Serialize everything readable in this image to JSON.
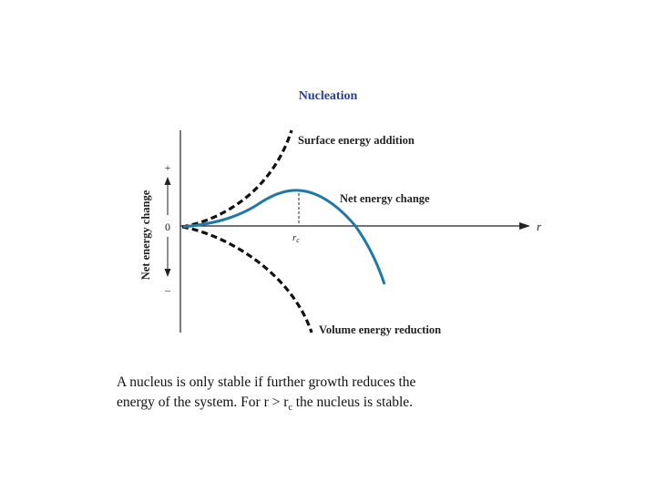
{
  "title": "Nucleation",
  "axis": {
    "y_label": "Net energy change",
    "y_plus": "+",
    "y_zero": "0",
    "y_minus": "–",
    "x_label": "r",
    "critical_label": "r",
    "critical_subscript": "c"
  },
  "curves": {
    "surface": "Surface energy addition",
    "net": "Net energy change",
    "volume": "Volume energy reduction"
  },
  "colors": {
    "title": "#2a3f8f",
    "net_curve": "#1f78a8",
    "dashed_curves": "#111111",
    "axes": "#222222"
  },
  "caption": {
    "line1": "A nucleus is only stable if further growth reduces the",
    "line2_pre": "energy of the system. For r > r",
    "line2_sub": "c",
    "line2_post": " the nucleus is stable."
  }
}
